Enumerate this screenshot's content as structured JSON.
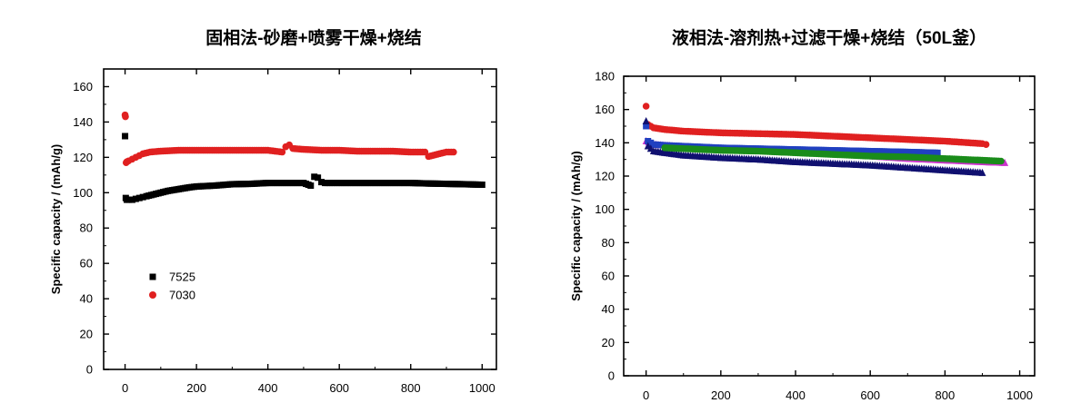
{
  "chart_data": [
    {
      "type": "scatter",
      "title": "固相法-砂磨+喷雾干燥+烧结",
      "xlabel": "",
      "ylabel": "Specific capacity / (mAh/g)",
      "xlim": [
        -60,
        1040
      ],
      "ylim": [
        0,
        170
      ],
      "xticks": [
        "0",
        "200",
        "400",
        "600",
        "800",
        "1000"
      ],
      "yticks": [
        "0",
        "20",
        "40",
        "60",
        "80",
        "100",
        "120",
        "140",
        "160"
      ],
      "legend_position": "bottom-left",
      "series": [
        {
          "name": "7525",
          "color": "#000000",
          "marker": "square",
          "x": [
            0,
            2,
            5,
            10,
            20,
            30,
            40,
            50,
            60,
            80,
            100,
            120,
            150,
            180,
            200,
            250,
            300,
            350,
            400,
            450,
            500,
            520,
            530,
            540,
            550,
            560,
            580,
            600,
            650,
            700,
            750,
            800,
            850,
            900,
            950,
            1000
          ],
          "y": [
            132,
            97,
            96,
            96,
            96,
            96.5,
            97,
            97.5,
            98,
            99,
            100,
            101,
            102,
            103,
            103.5,
            104,
            104.8,
            105,
            105.5,
            105.5,
            105.5,
            104,
            109,
            108.5,
            106,
            105.5,
            105.5,
            105.5,
            105.5,
            105.5,
            105.5,
            105.5,
            105.2,
            105,
            104.8,
            104.5
          ]
        },
        {
          "name": "7030",
          "color": "#e02020",
          "marker": "circle",
          "x": [
            0,
            1,
            3,
            5,
            10,
            20,
            30,
            40,
            50,
            70,
            100,
            150,
            200,
            250,
            300,
            350,
            400,
            440,
            450,
            460,
            470,
            500,
            550,
            600,
            650,
            700,
            750,
            800,
            840,
            850,
            900,
            920
          ],
          "y": [
            144,
            143,
            117,
            117.5,
            118,
            119,
            120,
            121,
            122,
            123,
            123.5,
            124,
            124,
            124,
            124,
            124,
            124,
            123,
            126,
            127,
            125,
            124.5,
            124,
            124,
            123.5,
            123.5,
            123.5,
            123,
            123,
            120.5,
            123,
            123
          ]
        }
      ]
    },
    {
      "type": "scatter",
      "title": "液相法-溶剂热+过滤干燥+烧结（50L釜）",
      "xlabel": "",
      "ylabel": "Specific capacity / (mAh/g)",
      "xlim": [
        -60,
        1040
      ],
      "ylim": [
        0,
        180
      ],
      "xticks": [
        "0",
        "200",
        "400",
        "600",
        "800",
        "1000"
      ],
      "yticks": [
        "0",
        "20",
        "40",
        "60",
        "80",
        "100",
        "120",
        "140",
        "160",
        "180"
      ],
      "series": [
        {
          "color": "#e02020",
          "marker": "circle",
          "x": [
            0,
            5,
            20,
            50,
            100,
            200,
            300,
            400,
            500,
            600,
            700,
            800,
            900,
            910
          ],
          "y": [
            162,
            151,
            149,
            148,
            147,
            146,
            145.5,
            145,
            144,
            143,
            142,
            141,
            139.5,
            139
          ]
        },
        {
          "color": "#cc33cc",
          "marker": "triangle",
          "x": [
            0,
            20,
            100,
            200,
            300,
            400,
            500,
            600,
            700,
            800,
            900,
            960
          ],
          "y": [
            141,
            139,
            137.5,
            136.5,
            135.5,
            134.5,
            133.5,
            132,
            130.5,
            129.5,
            128.5,
            128
          ]
        },
        {
          "color": "#2040c0",
          "marker": "square",
          "x": [
            0,
            5,
            20,
            50,
            100,
            200,
            300,
            400,
            500,
            600,
            700,
            780
          ],
          "y": [
            150,
            141,
            139,
            138.5,
            138,
            137,
            136.5,
            136,
            135.5,
            135,
            134.5,
            134
          ]
        },
        {
          "color": "#101070",
          "marker": "triangle",
          "x": [
            0,
            5,
            20,
            50,
            100,
            200,
            300,
            400,
            500,
            600,
            700,
            800,
            900
          ],
          "y": [
            153,
            138,
            135,
            134,
            132.5,
            131,
            130,
            128.5,
            127.5,
            126.5,
            125,
            123.5,
            122
          ]
        },
        {
          "color": "#1a8c1a",
          "marker": "circle",
          "x": [
            50,
            100,
            200,
            300,
            400,
            500,
            600,
            700,
            800,
            900,
            950
          ],
          "y": [
            137,
            136.5,
            135.5,
            135,
            134,
            133,
            132,
            131.5,
            130.5,
            129.5,
            129
          ]
        }
      ]
    }
  ]
}
